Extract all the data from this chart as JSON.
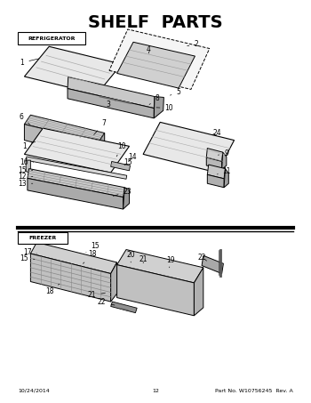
{
  "title": "SHELF  PARTS",
  "title_fontsize": 14,
  "title_fontweight": "bold",
  "bg_color": "#ffffff",
  "line_color": "#000000",
  "footer_left": "10/24/2014",
  "footer_center": "12",
  "footer_right": "Part No. W10756245  Rev. A",
  "refrigerator_label": "REFRIGERATOR",
  "freezer_label": "FREEZER"
}
